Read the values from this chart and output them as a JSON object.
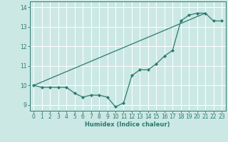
{
  "xlabel": "Humidex (Indice chaleur)",
  "ylabel": "",
  "background_color": "#cce8e4",
  "grid_color": "#ffffff",
  "line_color": "#2a7a6f",
  "xlim": [
    -0.5,
    23.5
  ],
  "ylim": [
    8.7,
    14.3
  ],
  "yticks": [
    9,
    10,
    11,
    12,
    13,
    14
  ],
  "xticks": [
    0,
    1,
    2,
    3,
    4,
    5,
    6,
    7,
    8,
    9,
    10,
    11,
    12,
    13,
    14,
    15,
    16,
    17,
    18,
    19,
    20,
    21,
    22,
    23
  ],
  "series1_x": [
    0,
    1,
    2,
    3,
    4,
    5,
    6,
    7,
    8,
    9,
    10,
    11,
    12,
    13,
    14,
    15,
    16,
    17,
    18,
    19,
    20,
    21,
    22,
    23
  ],
  "series1_y": [
    10.0,
    9.9,
    9.9,
    9.9,
    9.9,
    9.6,
    9.4,
    9.5,
    9.5,
    9.4,
    8.9,
    9.1,
    10.5,
    10.8,
    10.8,
    11.1,
    11.5,
    11.8,
    13.3,
    13.6,
    13.7,
    13.7,
    13.3,
    13.3
  ],
  "series2_x": [
    0,
    21
  ],
  "series2_y": [
    10.0,
    13.7
  ],
  "marker": "D",
  "markersize": 2.0,
  "linewidth": 0.9,
  "tick_fontsize": 5.5,
  "xlabel_fontsize": 6.0
}
